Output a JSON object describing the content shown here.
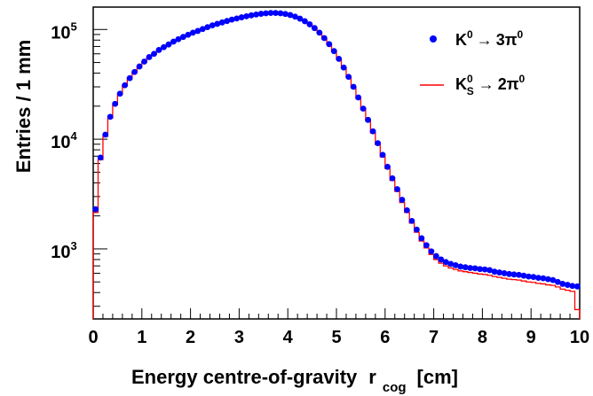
{
  "chart_data": {
    "type": "scatter",
    "xlabel": "Energy centre-of-gravity",
    "xlabel_var": "r",
    "xlabel_sub": "cog",
    "xlabel_unit": "[cm]",
    "ylabel": "Entries / 1 mm",
    "y_scale": "log",
    "xlim": [
      0,
      10
    ],
    "ylim": [
      230,
      160000
    ],
    "x_ticks": [
      "0",
      "1",
      "2",
      "3",
      "4",
      "5",
      "6",
      "7",
      "8",
      "9",
      "10"
    ],
    "y_ticks": [
      {
        "value": 1000,
        "base": "10",
        "exp": "3"
      },
      {
        "value": 10000,
        "base": "10",
        "exp": "4"
      },
      {
        "value": 100000,
        "base": "10",
        "exp": "5"
      }
    ],
    "legend_position": "top-right",
    "series": [
      {
        "name_parts": {
          "sym": "K",
          "sup": "0",
          "arrow": "→",
          "rest": "3π",
          "rest_sup": "0"
        },
        "style": "markers",
        "color": "#0000ff",
        "x": [
          0.05,
          0.15,
          0.25,
          0.35,
          0.45,
          0.55,
          0.65,
          0.75,
          0.85,
          0.95,
          1.05,
          1.15,
          1.25,
          1.35,
          1.45,
          1.55,
          1.65,
          1.75,
          1.85,
          1.95,
          2.05,
          2.15,
          2.25,
          2.35,
          2.45,
          2.55,
          2.65,
          2.75,
          2.85,
          2.95,
          3.05,
          3.15,
          3.25,
          3.35,
          3.45,
          3.55,
          3.65,
          3.75,
          3.85,
          3.95,
          4.05,
          4.15,
          4.25,
          4.35,
          4.45,
          4.55,
          4.65,
          4.75,
          4.85,
          4.95,
          5.05,
          5.15,
          5.25,
          5.35,
          5.45,
          5.55,
          5.65,
          5.75,
          5.85,
          5.95,
          6.05,
          6.15,
          6.25,
          6.35,
          6.45,
          6.55,
          6.65,
          6.75,
          6.85,
          6.95,
          7.05,
          7.15,
          7.25,
          7.35,
          7.45,
          7.55,
          7.65,
          7.75,
          7.85,
          7.95,
          8.05,
          8.15,
          8.25,
          8.35,
          8.45,
          8.55,
          8.65,
          8.75,
          8.85,
          8.95,
          9.05,
          9.15,
          9.25,
          9.35,
          9.45,
          9.55,
          9.65,
          9.75,
          9.85,
          9.95
        ],
        "values": [
          2300,
          6800,
          11000,
          16000,
          21000,
          26000,
          31000,
          36000,
          41000,
          46000,
          51000,
          56000,
          60000,
          65000,
          69000,
          73000,
          77500,
          81500,
          85500,
          89500,
          93500,
          97000,
          101000,
          105000,
          109000,
          112500,
          116000,
          119500,
          123000,
          126000,
          129000,
          132000,
          134500,
          137000,
          139000,
          140500,
          141500,
          141500,
          140500,
          138500,
          135500,
          131000,
          125500,
          119000,
          111500,
          103000,
          93500,
          83500,
          73500,
          63500,
          54000,
          45000,
          37000,
          30000,
          24000,
          19000,
          15000,
          11800,
          9200,
          7200,
          5600,
          4400,
          3500,
          2800,
          2250,
          1800,
          1500,
          1250,
          1080,
          950,
          860,
          800,
          760,
          730,
          710,
          690,
          680,
          670,
          665,
          655,
          650,
          640,
          620,
          610,
          600,
          590,
          585,
          580,
          570,
          560,
          555,
          545,
          540,
          530,
          520,
          500,
          480,
          470,
          460,
          455
        ]
      },
      {
        "name_parts": {
          "sym": "K",
          "sup": "0",
          "sub": "S",
          "arrow": "→",
          "rest": "2π",
          "rest_sup": "0"
        },
        "style": "step",
        "color": "#ff0000",
        "x": [
          0.05,
          0.15,
          0.25,
          0.35,
          0.45,
          0.55,
          0.65,
          0.75,
          0.85,
          0.95,
          1.05,
          1.15,
          1.25,
          1.35,
          1.45,
          1.55,
          1.65,
          1.75,
          1.85,
          1.95,
          2.05,
          2.15,
          2.25,
          2.35,
          2.45,
          2.55,
          2.65,
          2.75,
          2.85,
          2.95,
          3.05,
          3.15,
          3.25,
          3.35,
          3.45,
          3.55,
          3.65,
          3.75,
          3.85,
          3.95,
          4.05,
          4.15,
          4.25,
          4.35,
          4.45,
          4.55,
          4.65,
          4.75,
          4.85,
          4.95,
          5.05,
          5.15,
          5.25,
          5.35,
          5.45,
          5.55,
          5.65,
          5.75,
          5.85,
          5.95,
          6.05,
          6.15,
          6.25,
          6.35,
          6.45,
          6.55,
          6.65,
          6.75,
          6.85,
          6.95,
          7.05,
          7.15,
          7.25,
          7.35,
          7.45,
          7.55,
          7.65,
          7.75,
          7.85,
          7.95,
          8.05,
          8.15,
          8.25,
          8.35,
          8.45,
          8.55,
          8.65,
          8.75,
          8.85,
          8.95,
          9.05,
          9.15,
          9.25,
          9.35,
          9.45,
          9.55,
          9.65,
          9.75,
          9.85,
          9.95
        ],
        "values": [
          2150,
          6500,
          10600,
          15600,
          20600,
          25600,
          30600,
          35600,
          40500,
          45500,
          50500,
          55500,
          59500,
          64500,
          68500,
          72500,
          77000,
          81000,
          85000,
          89000,
          93000,
          96500,
          100500,
          104500,
          108500,
          112000,
          115500,
          119000,
          122500,
          125500,
          128500,
          131500,
          134000,
          136500,
          138500,
          140000,
          141000,
          141000,
          140000,
          138000,
          135000,
          130500,
          125000,
          118500,
          111000,
          102500,
          93000,
          83000,
          73000,
          63000,
          53500,
          44500,
          36500,
          29500,
          23500,
          18600,
          14600,
          11400,
          8900,
          6900,
          5400,
          4200,
          3350,
          2650,
          2150,
          1720,
          1420,
          1180,
          1020,
          890,
          800,
          740,
          700,
          670,
          650,
          630,
          620,
          610,
          600,
          590,
          585,
          575,
          560,
          550,
          540,
          530,
          525,
          520,
          510,
          500,
          495,
          485,
          480,
          470,
          465,
          450,
          430,
          420,
          410,
          280
        ]
      }
    ]
  }
}
